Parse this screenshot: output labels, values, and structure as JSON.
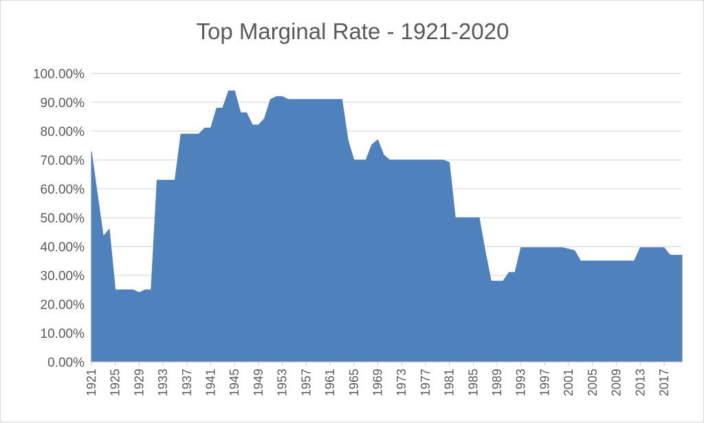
{
  "chart_data": {
    "type": "area",
    "title": "Top Marginal Rate - 1921-2020",
    "xlabel": "",
    "ylabel": "",
    "ylim": [
      0,
      1
    ],
    "y_tick_labels": [
      "0.00%",
      "10.00%",
      "20.00%",
      "30.00%",
      "40.00%",
      "50.00%",
      "60.00%",
      "70.00%",
      "80.00%",
      "90.00%",
      "100.00%"
    ],
    "x_tick_labels": [
      "1921",
      "1925",
      "1929",
      "1933",
      "1937",
      "1941",
      "1945",
      "1949",
      "1953",
      "1957",
      "1961",
      "1965",
      "1969",
      "1973",
      "1977",
      "1981",
      "1985",
      "1989",
      "1993",
      "1997",
      "2001",
      "2005",
      "2009",
      "2013",
      "2017"
    ],
    "grid": true,
    "color": "#4f81bd",
    "x": [
      1921,
      1922,
      1923,
      1924,
      1925,
      1926,
      1927,
      1928,
      1929,
      1930,
      1931,
      1932,
      1933,
      1934,
      1935,
      1936,
      1937,
      1938,
      1939,
      1940,
      1941,
      1942,
      1943,
      1944,
      1945,
      1946,
      1947,
      1948,
      1949,
      1950,
      1951,
      1952,
      1953,
      1954,
      1955,
      1956,
      1957,
      1958,
      1959,
      1960,
      1961,
      1962,
      1963,
      1964,
      1965,
      1966,
      1967,
      1968,
      1969,
      1970,
      1971,
      1972,
      1973,
      1974,
      1975,
      1976,
      1977,
      1978,
      1979,
      1980,
      1981,
      1982,
      1983,
      1984,
      1985,
      1986,
      1987,
      1988,
      1989,
      1990,
      1991,
      1992,
      1993,
      1994,
      1995,
      1996,
      1997,
      1998,
      1999,
      2000,
      2001,
      2002,
      2003,
      2004,
      2005,
      2006,
      2007,
      2008,
      2009,
      2010,
      2011,
      2012,
      2013,
      2014,
      2015,
      2016,
      2017,
      2018,
      2019,
      2020
    ],
    "values": [
      0.73,
      0.58,
      0.435,
      0.46,
      0.25,
      0.25,
      0.25,
      0.25,
      0.24,
      0.25,
      0.25,
      0.63,
      0.63,
      0.63,
      0.63,
      0.79,
      0.79,
      0.79,
      0.79,
      0.811,
      0.811,
      0.88,
      0.88,
      0.94,
      0.94,
      0.864,
      0.864,
      0.8213,
      0.8213,
      0.8436,
      0.91,
      0.92,
      0.92,
      0.91,
      0.91,
      0.91,
      0.91,
      0.91,
      0.91,
      0.91,
      0.91,
      0.91,
      0.91,
      0.77,
      0.7,
      0.7,
      0.7,
      0.7525,
      0.77,
      0.7175,
      0.7,
      0.7,
      0.7,
      0.7,
      0.7,
      0.7,
      0.7,
      0.7,
      0.7,
      0.7,
      0.6913,
      0.5,
      0.5,
      0.5,
      0.5,
      0.5,
      0.385,
      0.28,
      0.28,
      0.28,
      0.31,
      0.31,
      0.396,
      0.396,
      0.396,
      0.396,
      0.396,
      0.396,
      0.396,
      0.396,
      0.391,
      0.386,
      0.35,
      0.35,
      0.35,
      0.35,
      0.35,
      0.35,
      0.35,
      0.35,
      0.35,
      0.35,
      0.396,
      0.396,
      0.396,
      0.396,
      0.396,
      0.37,
      0.37,
      0.37
    ]
  }
}
